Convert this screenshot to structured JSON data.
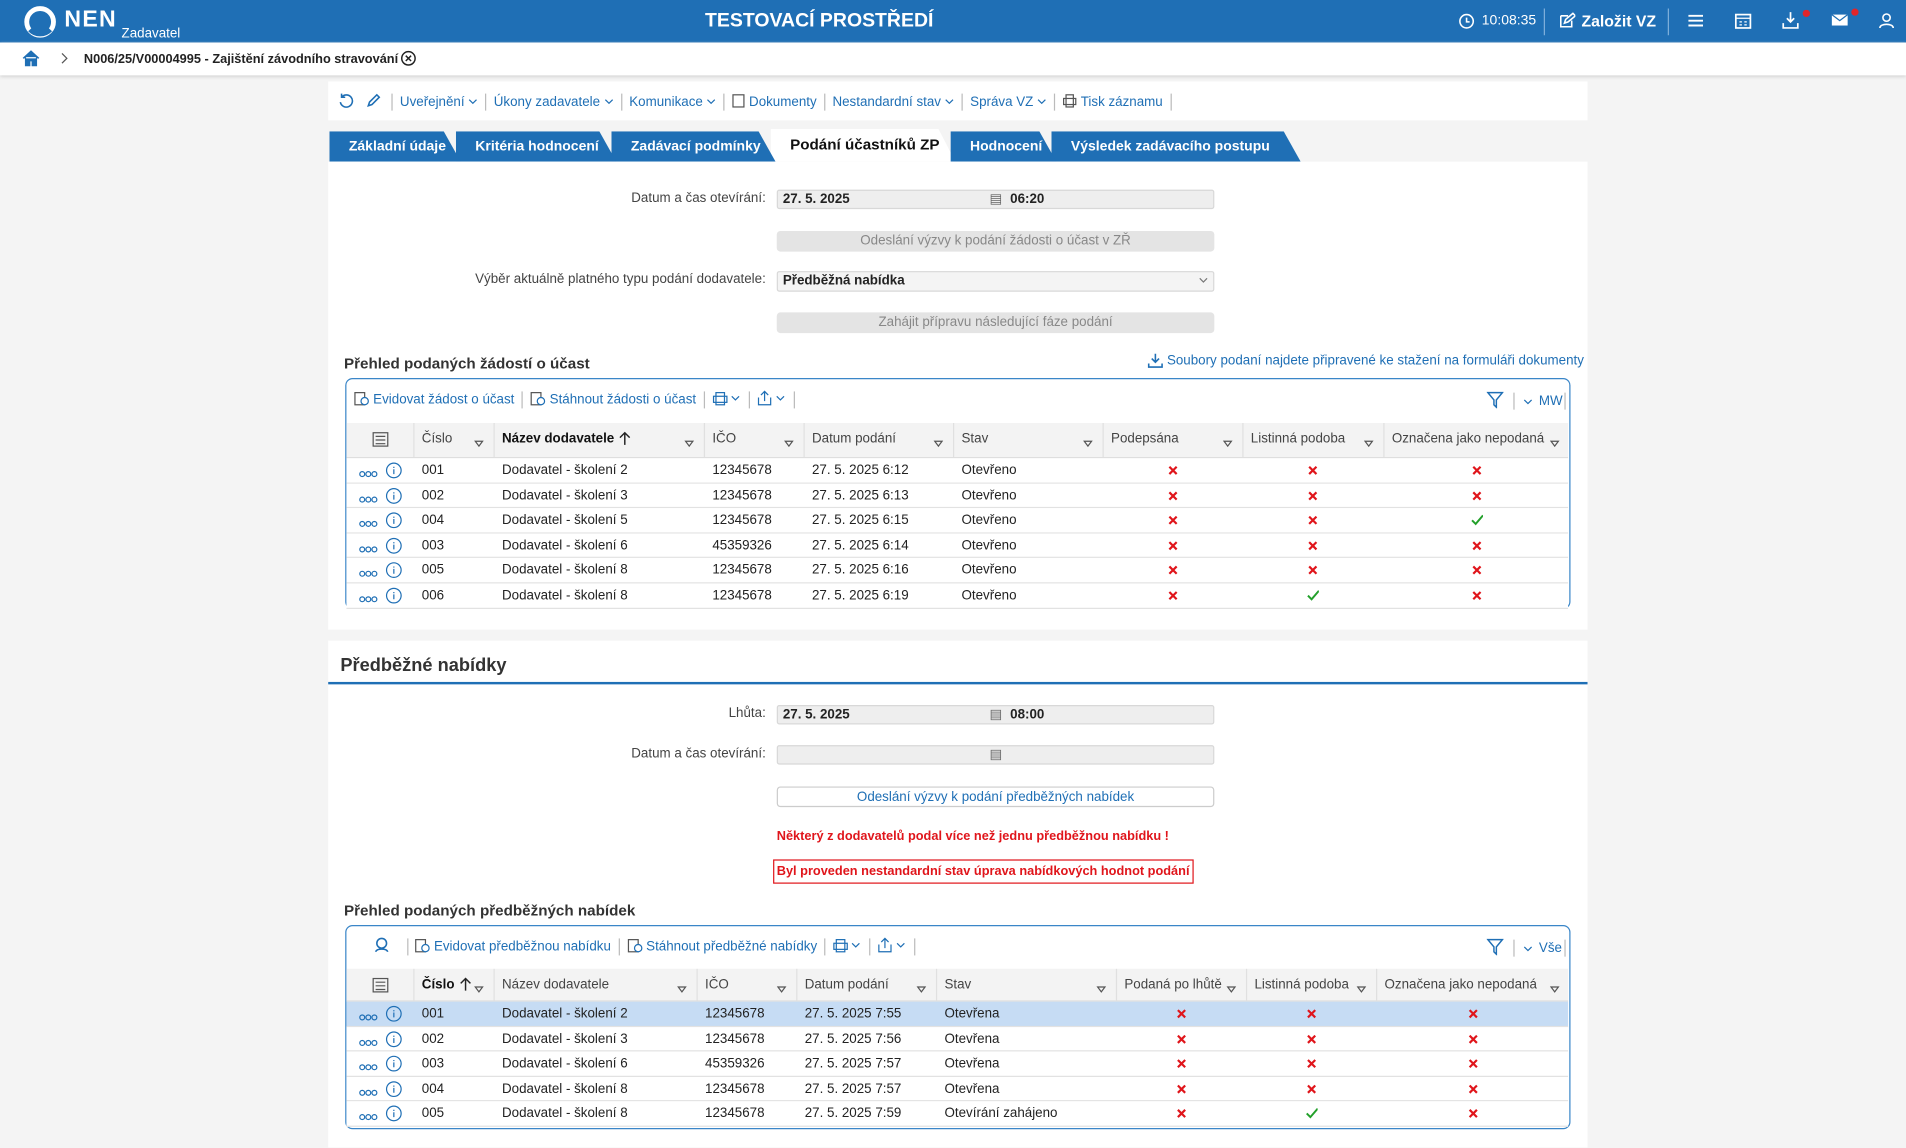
{
  "header": {
    "logo": "NEN",
    "role": "Zadavatel",
    "environment": "TESTOVACÍ PROSTŘEDÍ",
    "time": "10:08:35",
    "create": "Založit VZ"
  },
  "breadcrumb": "N006/25/V00004995 - Zajištění závodního stravování",
  "toolbar": [
    "Uveřejnění",
    "Úkony zadavatele",
    "Komunikace",
    "Dokumenty",
    "Nestandardní stav",
    "Správa VZ",
    "Tisk záznamu"
  ],
  "tabs": {
    "items": [
      "Základní údaje",
      "Kritéria hodnocení",
      "Zadávací podmínky",
      "Podání účastníků ZP",
      "Hodnocení",
      "Výsledek zadávacího postupu"
    ],
    "active": 3
  },
  "section1": {
    "opening_label": "Datum a čas otevírání:",
    "opening_date": "27. 5. 2025",
    "opening_time": "06:20",
    "invite_button": "Odeslání výzvy k podání žádosti o účast v ZŘ",
    "type_label": "Výběr aktuálně platného typu podání dodavatele:",
    "type_value": "Předběžná nabídka",
    "next_phase_button": "Zahájit přípravu následující fáze podání"
  },
  "grid1": {
    "title": "Přehled podaných žádostí o účast",
    "link": "Soubory podaní najdete připravené ke stažení na formuláři dokumenty",
    "actions": [
      "Evidovat žádost o účast",
      "Stáhnout žádosti o účast"
    ],
    "right": "MW",
    "sorted_column": 1,
    "columns": [
      "Číslo",
      "Název dodavatele",
      "IČO",
      "Datum podání",
      "Stav",
      "Podepsána",
      "Listinná podoba",
      "Označena jako nepodaná"
    ],
    "rows": [
      [
        "001",
        "Dodavatel - školení 2",
        "12345678",
        "27. 5. 2025 6:12",
        "Otevřeno",
        false,
        false,
        false
      ],
      [
        "002",
        "Dodavatel - školení 3",
        "12345678",
        "27. 5. 2025 6:13",
        "Otevřeno",
        false,
        false,
        false
      ],
      [
        "004",
        "Dodavatel - školení 5",
        "12345678",
        "27. 5. 2025 6:15",
        "Otevřeno",
        false,
        false,
        true
      ],
      [
        "003",
        "Dodavatel - školení 6",
        "45359326",
        "27. 5. 2025 6:14",
        "Otevřeno",
        false,
        false,
        false
      ],
      [
        "005",
        "Dodavatel - školení 8",
        "12345678",
        "27. 5. 2025 6:16",
        "Otevřeno",
        false,
        false,
        false
      ],
      [
        "006",
        "Dodavatel - školení 8",
        "12345678",
        "27. 5. 2025 6:19",
        "Otevřeno",
        false,
        true,
        false
      ]
    ]
  },
  "section2": {
    "title": "Předběžné nabídky",
    "deadline_label": "Lhůta:",
    "deadline_date": "27. 5. 2025",
    "deadline_time": "08:00",
    "opening_label": "Datum a čas otevírání:",
    "invite_button": "Odeslání výzvy k podání předběžných nabídek",
    "warning": "Některý z dodavatelů podal více než jednu předběžnou nabídku !",
    "notice": "Byl proveden nestandardní stav úprava nabídkových hodnot podání"
  },
  "grid2": {
    "title": "Přehled podaných předběžných nabídek",
    "actions": [
      "Evidovat předběžnou nabídku",
      "Stáhnout předběžné nabídky"
    ],
    "right": "Vše",
    "sorted_column": 0,
    "selected_row": 0,
    "columns": [
      "Číslo",
      "Název dodavatele",
      "IČO",
      "Datum podání",
      "Stav",
      "Podaná po lhůtě",
      "Listinná podoba",
      "Označena jako nepodaná"
    ],
    "rows": [
      [
        "001",
        "Dodavatel - školení 2",
        "12345678",
        "27. 5. 2025 7:55",
        "Otevřena",
        false,
        false,
        false
      ],
      [
        "002",
        "Dodavatel - školení 3",
        "12345678",
        "27. 5. 2025 7:56",
        "Otevřena",
        false,
        false,
        false
      ],
      [
        "003",
        "Dodavatel - školení 6",
        "45359326",
        "27. 5. 2025 7:57",
        "Otevřena",
        false,
        false,
        false
      ],
      [
        "004",
        "Dodavatel - školení 8",
        "12345678",
        "27. 5. 2025 7:57",
        "Otevřena",
        false,
        false,
        false
      ],
      [
        "005",
        "Dodavatel - školení 8",
        "12345678",
        "27. 5. 2025 7:59",
        "Otevírání zahájeno",
        false,
        true,
        false
      ]
    ]
  }
}
